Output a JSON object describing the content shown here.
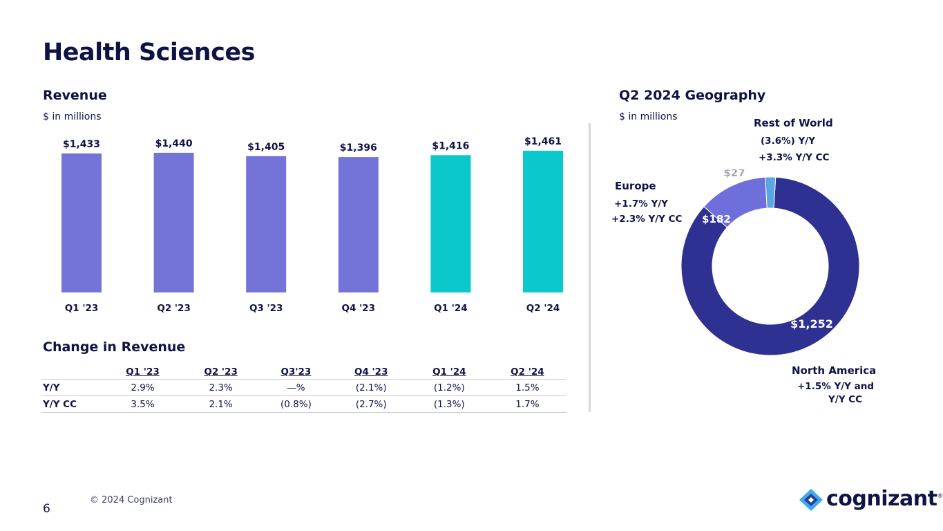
{
  "page": {
    "title": "Health Sciences",
    "page_number": "6",
    "copyright": "© 2024 Cognizant",
    "logo_text": "cognizant",
    "logo_mark": "®"
  },
  "revenue": {
    "heading": "Revenue",
    "unit": "$ in millions"
  },
  "change": {
    "heading": "Change in Revenue",
    "columns": [
      "Q1 '23",
      "Q2 '23",
      "Q3'23",
      "Q4 '23",
      "Q1 '24",
      "Q2 '24"
    ],
    "rows": [
      {
        "label": "Y/Y",
        "values": [
          "2.9%",
          "2.3%",
          "—%",
          "(2.1%)",
          "(1.2%)",
          "1.5%"
        ]
      },
      {
        "label": "Y/Y CC",
        "values": [
          "3.5%",
          "2.1%",
          "(0.8%)",
          "(2.7%)",
          "(1.3%)",
          "1.7%"
        ]
      }
    ]
  },
  "geography": {
    "heading": "Q2 2024 Geography",
    "unit": "$ in millions",
    "rest_of_world": {
      "name": "Rest of World",
      "line1": "(3.6%) Y/Y",
      "line2": "+3.3%  Y/Y CC"
    },
    "europe": {
      "name": "Europe",
      "line1": "+1.7%  Y/Y",
      "line2": "+2.3%  Y/Y CC"
    },
    "north_america": {
      "name": "North America",
      "line1": "+1.5%  Y/Y and",
      "line2": "Y/Y CC"
    }
  },
  "colors": {
    "bar_2023": "#7474d8",
    "bar_2024": "#0bc8cc",
    "navy": "#0e1245",
    "na_slice": "#2e3192",
    "eu_slice": "#6f6fdb",
    "row_slice": "#5aa5e3",
    "logo_light": "#3ea8f0",
    "logo_dark": "#2a3d8f"
  },
  "chart_data": [
    {
      "type": "bar",
      "title": "Revenue",
      "subtitle": "$ in millions",
      "categories": [
        "Q1 '23",
        "Q2 '23",
        "Q3 '23",
        "Q4 '23",
        "Q1 '24",
        "Q2 '24"
      ],
      "values": [
        1433,
        1440,
        1405,
        1396,
        1416,
        1461
      ],
      "value_labels": [
        "$1,433",
        "$1,440",
        "$1,405",
        "$1,396",
        "$1,416",
        "$1,461"
      ],
      "bar_colors": [
        "#7474d8",
        "#7474d8",
        "#7474d8",
        "#7474d8",
        "#0bc8cc",
        "#0bc8cc"
      ],
      "ylim": [
        0,
        1461
      ],
      "grid": false
    },
    {
      "type": "pie",
      "donut": true,
      "title": "Q2 2024 Geography",
      "subtitle": "$ in millions",
      "slices": [
        {
          "name": "North America",
          "value": 1252,
          "label": "$1,252",
          "color": "#2e3192"
        },
        {
          "name": "Europe",
          "value": 182,
          "label": "$182",
          "color": "#6f6fdb"
        },
        {
          "name": "Rest of World",
          "value": 27,
          "label": "$27",
          "color": "#5aa5e3"
        }
      ]
    }
  ]
}
